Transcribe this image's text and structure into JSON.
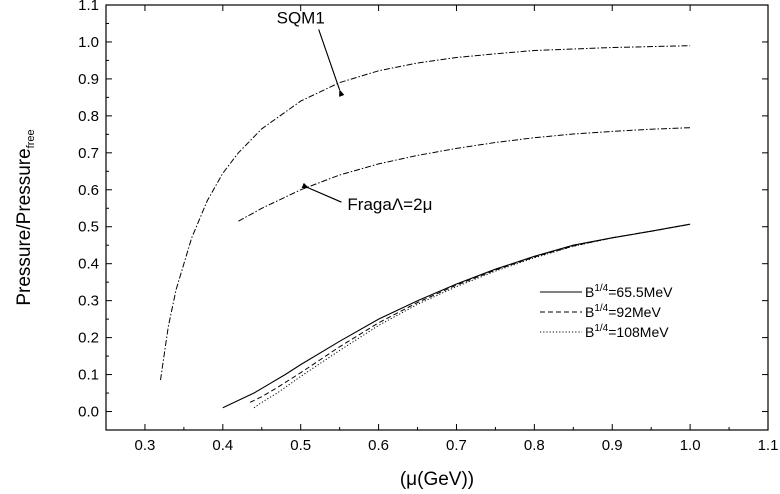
{
  "chart_data": {
    "type": "line",
    "title": "",
    "xlabel": "(μ(GeV))",
    "ylabel": "Pressure/Pressure",
    "ylabel_sub": "free",
    "xlim": [
      0.25,
      1.1
    ],
    "ylim": [
      -0.05,
      1.1
    ],
    "xticks": [
      0.3,
      0.4,
      0.5,
      0.6,
      0.7,
      0.8,
      0.9,
      1.0,
      1.1
    ],
    "yticks": [
      0.0,
      0.1,
      0.2,
      0.3,
      0.4,
      0.5,
      0.6,
      0.7,
      0.8,
      0.9,
      1.0,
      1.1
    ],
    "grid": false,
    "legend_position": "lower-right",
    "series": [
      {
        "name": "B1/4=65.5MeV",
        "legend_base": "B",
        "legend_sup": "1/4",
        "legend_rest": "=65.5MeV",
        "style": "solid",
        "x": [
          0.4,
          0.42,
          0.44,
          0.46,
          0.48,
          0.5,
          0.55,
          0.6,
          0.65,
          0.7,
          0.75,
          0.8,
          0.85,
          0.9,
          0.95,
          1.0
        ],
        "y": [
          0.01,
          0.03,
          0.05,
          0.075,
          0.1,
          0.127,
          0.19,
          0.25,
          0.3,
          0.345,
          0.385,
          0.42,
          0.45,
          0.47,
          0.488,
          0.507
        ]
      },
      {
        "name": "B1/4=92MeV",
        "legend_base": "B",
        "legend_sup": "1/4",
        "legend_rest": "=92MeV",
        "style": "dashed",
        "x": [
          0.435,
          0.45,
          0.47,
          0.5,
          0.55,
          0.6,
          0.65,
          0.7,
          0.75,
          0.8,
          0.85,
          0.9,
          0.95,
          1.0
        ],
        "y": [
          0.025,
          0.04,
          0.065,
          0.105,
          0.175,
          0.24,
          0.295,
          0.342,
          0.383,
          0.418,
          0.448,
          0.47,
          0.488,
          0.507
        ]
      },
      {
        "name": "B1/4=108MeV",
        "legend_base": "B",
        "legend_sup": "1/4",
        "legend_rest": "=108MeV",
        "style": "dotted",
        "x": [
          0.44,
          0.45,
          0.47,
          0.5,
          0.55,
          0.6,
          0.65,
          0.7,
          0.75,
          0.8,
          0.85,
          0.9,
          0.95,
          1.0
        ],
        "y": [
          0.01,
          0.025,
          0.05,
          0.095,
          0.165,
          0.233,
          0.29,
          0.338,
          0.38,
          0.416,
          0.447,
          0.47,
          0.488,
          0.507
        ]
      },
      {
        "name": "SQM1",
        "style": "dashdot",
        "x": [
          0.32,
          0.33,
          0.34,
          0.36,
          0.38,
          0.4,
          0.42,
          0.45,
          0.5,
          0.55,
          0.6,
          0.65,
          0.7,
          0.75,
          0.8,
          0.9,
          1.0
        ],
        "y": [
          0.085,
          0.23,
          0.33,
          0.47,
          0.57,
          0.645,
          0.7,
          0.765,
          0.84,
          0.89,
          0.922,
          0.943,
          0.958,
          0.968,
          0.977,
          0.985,
          0.99
        ]
      },
      {
        "name": "FragaΛ=2μ",
        "style": "dashdot",
        "x": [
          0.42,
          0.45,
          0.5,
          0.55,
          0.6,
          0.65,
          0.7,
          0.75,
          0.8,
          0.85,
          0.9,
          0.95,
          1.0
        ],
        "y": [
          0.515,
          0.55,
          0.6,
          0.64,
          0.67,
          0.693,
          0.712,
          0.728,
          0.741,
          0.751,
          0.758,
          0.764,
          0.768
        ]
      }
    ],
    "annotations": [
      {
        "text": "SQM1",
        "x": 0.5,
        "y": 1.05,
        "arrow_to": [
          0.55,
          0.87
        ]
      },
      {
        "text": "FragaΛ=2μ",
        "x": 0.56,
        "y": 0.545,
        "arrow_to": [
          0.51,
          0.605
        ]
      }
    ]
  }
}
